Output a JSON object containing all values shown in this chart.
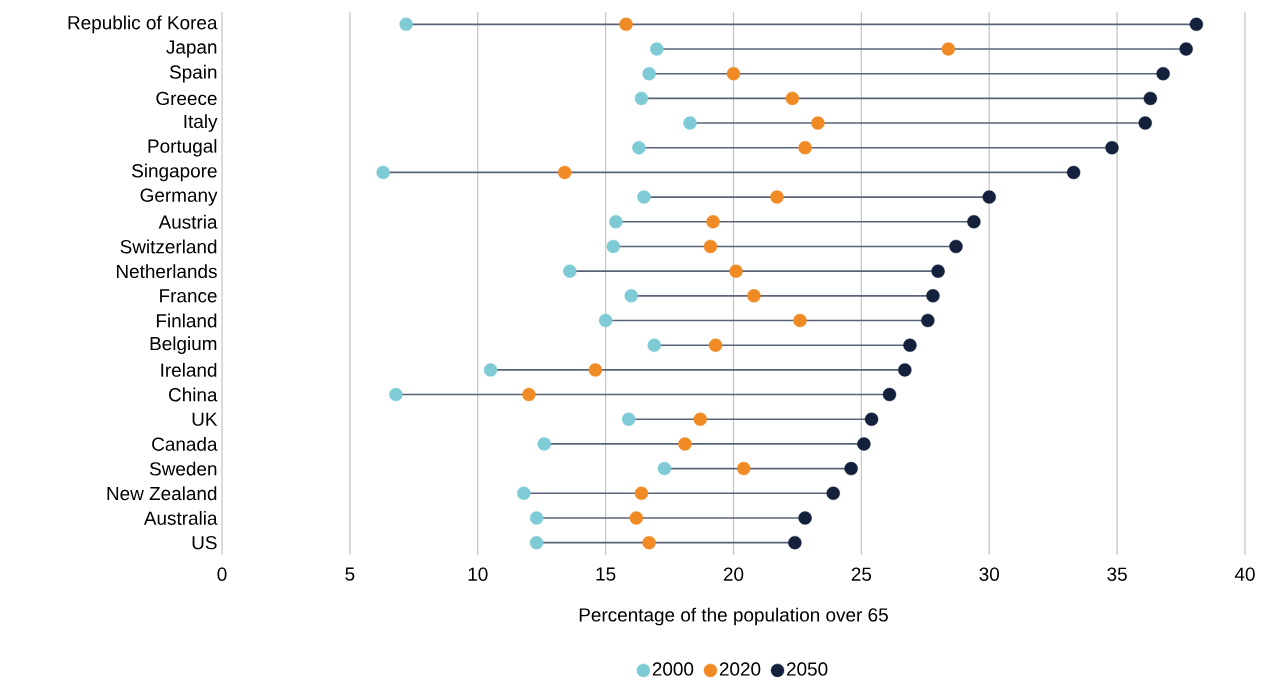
{
  "chart_data": {
    "type": "scatter",
    "orientation": "horizontal",
    "xlabel": "Percentage of the population over 65",
    "categories": [
      "Republic of Korea",
      "Japan",
      "Spain",
      "Greece",
      "Italy",
      "Portugal",
      "Singapore",
      "Germany",
      "Austria",
      "Switzerland",
      "Netherlands",
      "France",
      "Finland",
      "Belgium",
      "Ireland",
      "China",
      "UK",
      "Canada",
      "Sweden",
      "New Zealand",
      "Australia",
      "US"
    ],
    "series": [
      {
        "name": "2000",
        "color": "#7ecbd6",
        "values": [
          7.2,
          17.0,
          16.7,
          16.4,
          18.3,
          16.3,
          6.3,
          16.5,
          15.4,
          15.3,
          13.6,
          16.0,
          15.0,
          16.9,
          10.5,
          6.8,
          15.9,
          12.6,
          17.3,
          11.8,
          12.3,
          12.3
        ]
      },
      {
        "name": "2020",
        "color": "#f08a24",
        "values": [
          15.8,
          28.4,
          20.0,
          22.3,
          23.3,
          22.8,
          13.4,
          21.7,
          19.2,
          19.1,
          20.1,
          20.8,
          22.6,
          19.3,
          14.6,
          12.0,
          18.7,
          18.1,
          20.4,
          16.4,
          16.2,
          16.7
        ]
      },
      {
        "name": "2050",
        "color": "#14213d",
        "values": [
          38.1,
          37.7,
          36.8,
          36.3,
          36.1,
          34.8,
          33.3,
          30.0,
          29.4,
          28.7,
          28.0,
          27.8,
          27.6,
          26.9,
          26.7,
          26.1,
          25.4,
          25.1,
          24.6,
          23.9,
          22.8,
          22.4
        ]
      }
    ],
    "xlim": [
      0,
      40
    ],
    "xticks": [
      0,
      5,
      10,
      15,
      20,
      25,
      30,
      35,
      40
    ],
    "grid": "x",
    "legend": "bottom",
    "marker": "circle"
  }
}
